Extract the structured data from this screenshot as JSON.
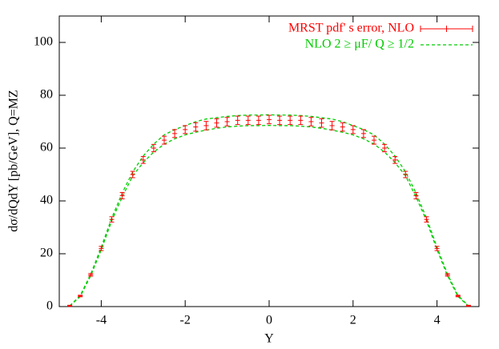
{
  "chart_data": {
    "type": "errorband",
    "xlabel": "Y",
    "ylabel": "dσ/dQdY [pb/GeV], Q=MZ",
    "xlim": [
      -5,
      5
    ],
    "xticks": [
      -4,
      -2,
      0,
      2,
      4
    ],
    "ylim": [
      0,
      110
    ],
    "yticks": [
      0,
      20,
      40,
      60,
      80,
      100
    ],
    "legend": "top-right",
    "x": [
      -4.75,
      -4.5,
      -4.25,
      -4,
      -3.75,
      -3.5,
      -3.25,
      -3,
      -2.75,
      -2.5,
      -2.25,
      -2,
      -1.75,
      -1.5,
      -1.25,
      -1,
      -0.75,
      -0.5,
      -0.25,
      0,
      0.25,
      0.5,
      0.75,
      1,
      1.25,
      1.5,
      1.75,
      2,
      2.25,
      2.5,
      2.75,
      3,
      3.25,
      3.5,
      3.75,
      4,
      4.25,
      4.5,
      4.75
    ],
    "series": [
      {
        "name": "MRST pdf' s error, NLO",
        "color": "#ff0000",
        "values": [
          0.3,
          4,
          12,
          22,
          33,
          42,
          50,
          55.5,
          60,
          63,
          65.5,
          67,
          68,
          68.5,
          69.5,
          70,
          70.5,
          70.5,
          70.5,
          70.8,
          70.5,
          70.5,
          70.5,
          70,
          69.5,
          68.5,
          68,
          67,
          65.5,
          63,
          60,
          55.5,
          50,
          42,
          33,
          22,
          12,
          4,
          0.3
        ],
        "errors": [
          0.2,
          0.3,
          0.5,
          0.8,
          1,
          1.2,
          1.2,
          1.3,
          1.4,
          1.5,
          1.5,
          1.5,
          1.6,
          1.6,
          1.6,
          1.6,
          1.6,
          1.6,
          1.6,
          1.6,
          1.6,
          1.6,
          1.6,
          1.6,
          1.6,
          1.6,
          1.6,
          1.5,
          1.5,
          1.5,
          1.4,
          1.3,
          1.2,
          1.2,
          1,
          0.8,
          0.5,
          0.3,
          0.2
        ]
      },
      {
        "name": "NLO  2 ≥ μF/ Q ≥ 1/2",
        "color": "#00cc00",
        "upper": [
          0.3,
          4.2,
          12.3,
          22.5,
          33.5,
          43,
          51,
          57,
          61.5,
          65,
          67,
          68.5,
          70,
          71,
          71.5,
          72,
          72.3,
          72.5,
          72.5,
          72.6,
          72.5,
          72.5,
          72.3,
          72,
          71.5,
          71,
          70,
          68.5,
          67,
          65,
          61.5,
          57,
          51,
          43,
          33.5,
          22.5,
          12.3,
          4.2,
          0.3
        ],
        "lower": [
          0.2,
          3.8,
          11.7,
          21.5,
          32.5,
          41.5,
          49.5,
          54.5,
          58.5,
          61.5,
          63.5,
          65,
          66,
          66.8,
          67.5,
          68,
          68.3,
          68.5,
          68.5,
          68.6,
          68.5,
          68.5,
          68.3,
          68,
          67.5,
          66.8,
          66,
          65,
          63.5,
          61.5,
          58.5,
          54.5,
          49.5,
          41.5,
          32.5,
          21.5,
          11.7,
          3.8,
          0.2
        ]
      }
    ]
  }
}
